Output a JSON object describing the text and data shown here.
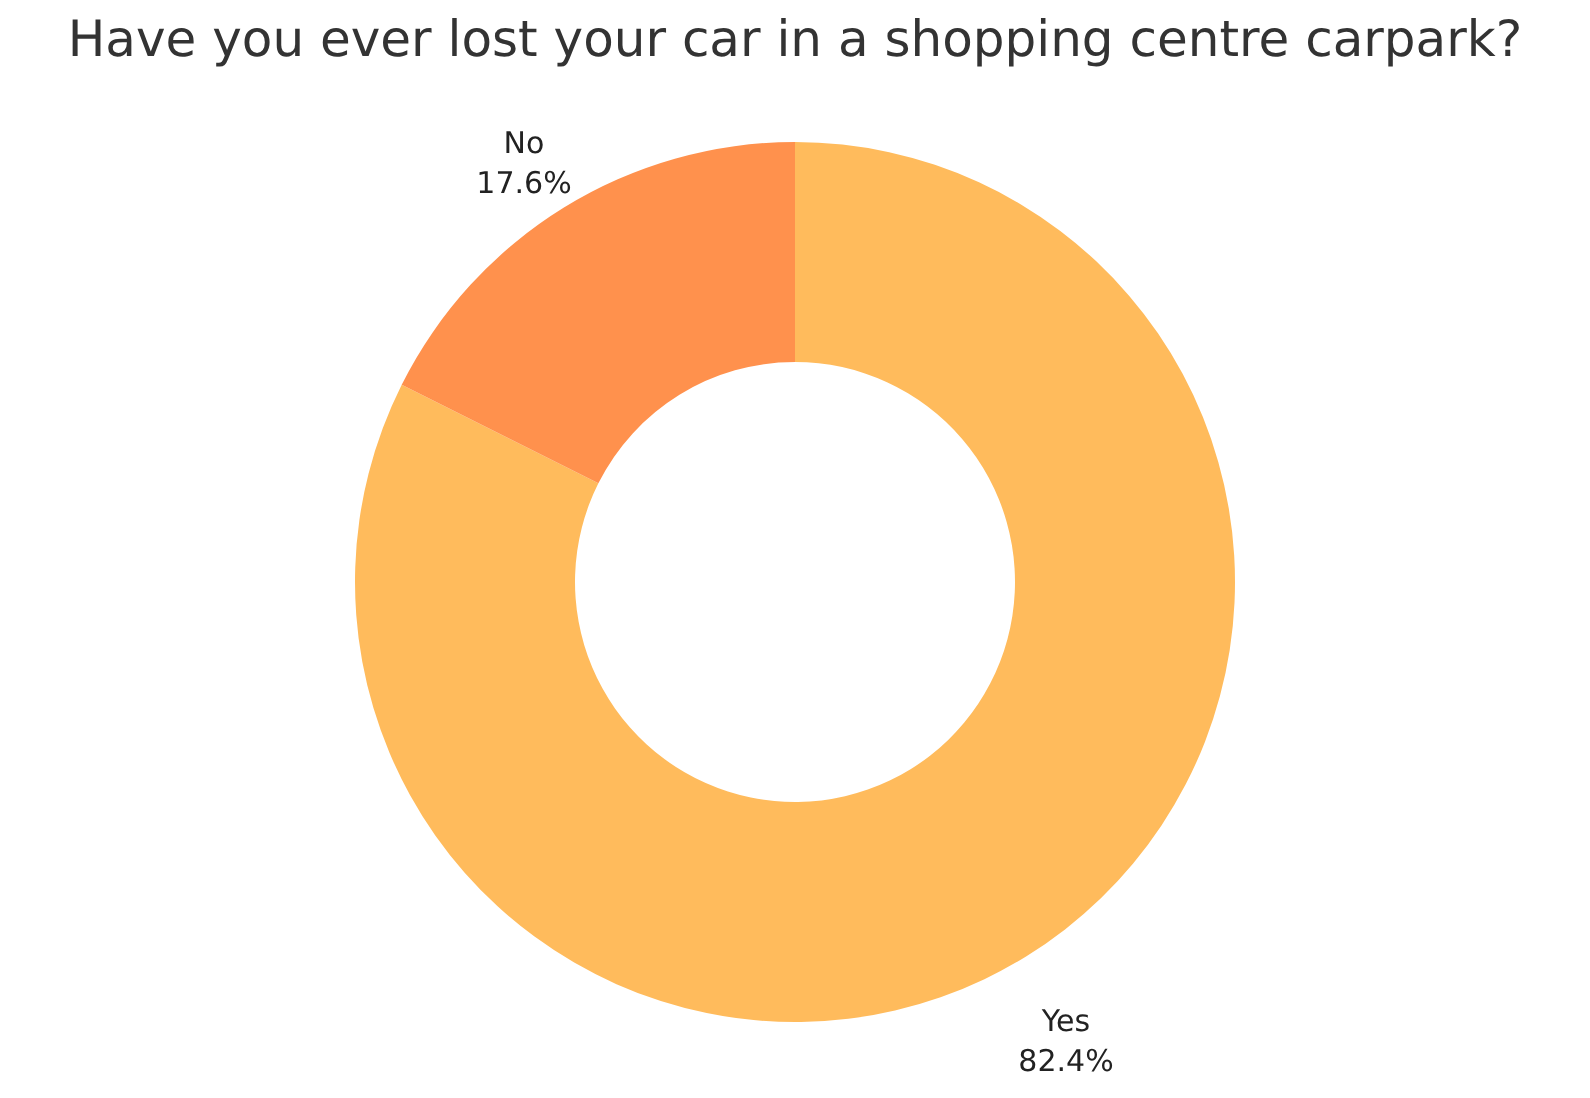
{
  "chart_data": {
    "type": "donut",
    "title": "Have you ever lost your car in a shopping centre carpark?",
    "categories": [
      "Yes",
      "No"
    ],
    "values": [
      82.4,
      17.6
    ],
    "value_labels": [
      "82.4%",
      "17.6%"
    ],
    "colors": [
      "#ffbb5c",
      "#ff914d"
    ],
    "legend": false
  }
}
